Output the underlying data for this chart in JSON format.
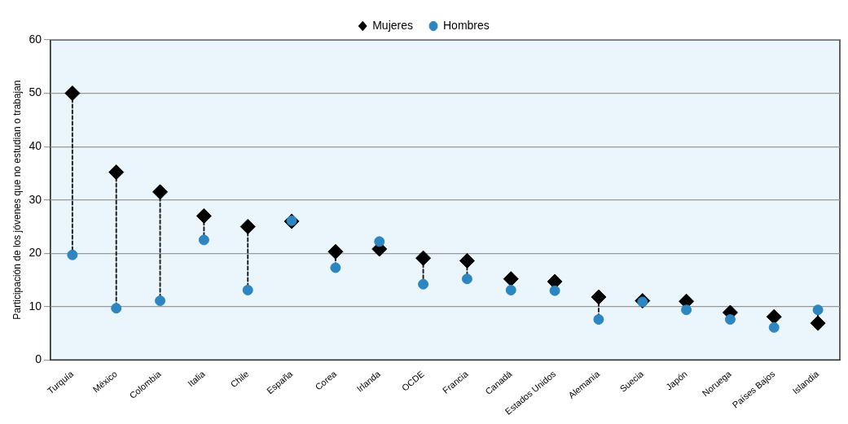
{
  "chart_data": {
    "type": "scatter",
    "ylabel": "Participación de los jóvenes que no estudian o trabajan",
    "categories": [
      "Turquía",
      "México",
      "Colombia",
      "Italia",
      "Chile",
      "España",
      "Corea",
      "Irlanda",
      "OCDE",
      "Francia",
      "Canadá",
      "Estados Unidos",
      "Alemania",
      "Suecia",
      "Japón",
      "Noruega",
      "Países Bajos",
      "Islandia"
    ],
    "series": [
      {
        "name": "Mujeres",
        "color": "#000000",
        "marker": "diamond",
        "values": [
          50,
          35.2,
          31.5,
          27,
          25,
          26,
          20.3,
          20.8,
          19.1,
          18.6,
          15.2,
          14.7,
          11.8,
          11.1,
          11,
          8.9,
          8.1,
          6.9
        ]
      },
      {
        "name": "Hombres",
        "color": "#2e86c1",
        "marker": "circle",
        "values": [
          19.7,
          9.7,
          11.1,
          22.5,
          13.1,
          26.1,
          17.3,
          22.2,
          14.2,
          15.2,
          13.1,
          13,
          7.6,
          10.9,
          9.4,
          7.6,
          6.1,
          9.4
        ]
      }
    ],
    "ylim": [
      0,
      60
    ],
    "yticks": [
      0,
      10,
      20,
      30,
      40,
      50,
      60
    ],
    "grid": "y",
    "legend": "top",
    "line_style": "dashed"
  }
}
